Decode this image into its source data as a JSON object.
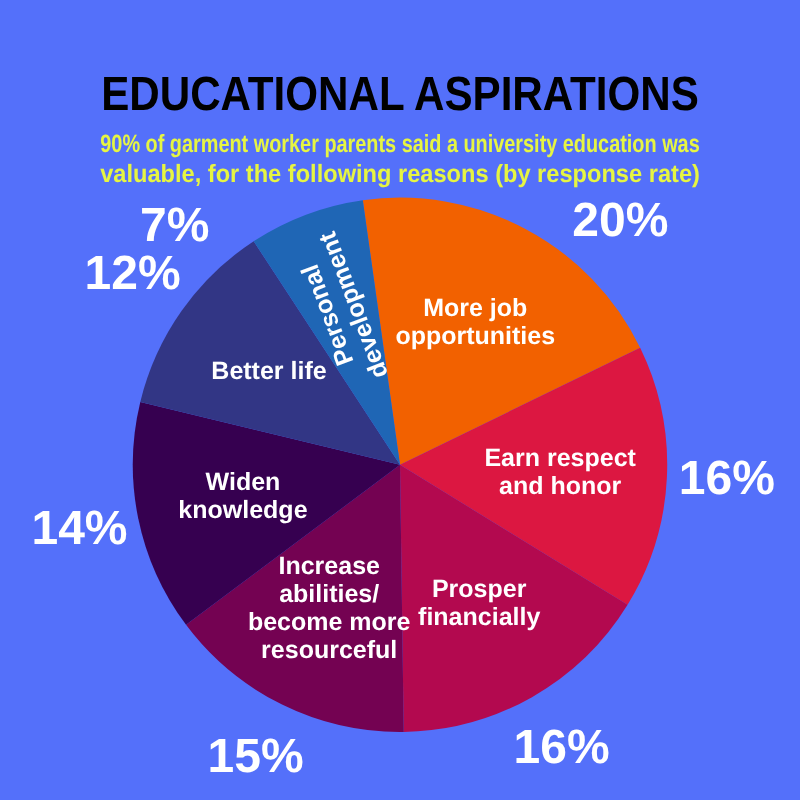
{
  "chart_data": {
    "type": "pie",
    "title": "EDUCATIONAL ASPIRATIONS",
    "subtitle": "90% of garment worker parents said a university education was valuable, for the following reasons (by response rate)",
    "categories": [
      "More job opportunities",
      "Earn respect and honor",
      "Prosper financially",
      "Increase abilities/ become more resourceful",
      "Widen knowledge",
      "Better life",
      "Personal development"
    ],
    "values": [
      20,
      16,
      16,
      15,
      14,
      12,
      7
    ],
    "value_labels": [
      "20%",
      "16%",
      "16%",
      "15%",
      "14%",
      "12%",
      "7%"
    ],
    "colors": [
      "#f26100",
      "#dc1741",
      "#b3094f",
      "#740252",
      "#360050",
      "#323685",
      "#1f66b5"
    ],
    "legend": false
  }
}
